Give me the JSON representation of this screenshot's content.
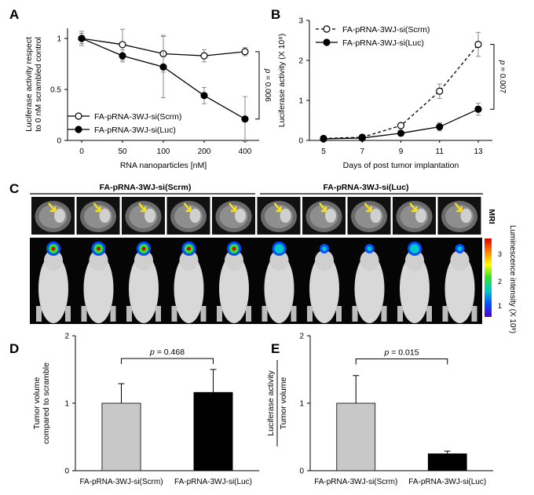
{
  "panels": {
    "A": "A",
    "B": "B",
    "C": "C",
    "D": "D",
    "E": "E"
  },
  "panel_c": {
    "group_left": "FA-pRNA-3WJ-si(Scrm)",
    "group_right": "FA-pRNA-3WJ-si(Luc)",
    "mri_label": "MRI",
    "colorbar_title": "Luminescence intensity (X 10⁸)",
    "colorbar_ticks": [
      "1",
      "2",
      "3"
    ],
    "colors": {
      "arrow": "#f6e11b",
      "colorbar": [
        "#5a00c8",
        "#0050ff",
        "#00c8c8",
        "#30e030",
        "#ffff00",
        "#ff8000",
        "#e00000"
      ]
    },
    "icons": [
      "mri-brain-slice",
      "mouse-silhouette",
      "yellow-arrow"
    ]
  },
  "chart_data": [
    {
      "id": "A",
      "type": "line",
      "title": "",
      "xlabel": "RNA nanoparticles [nM]",
      "ylabel_lines": [
        "Luciferase activity respect",
        "to 0 nM scrambled control"
      ],
      "categories": [
        "0",
        "50",
        "100",
        "200",
        "400"
      ],
      "ylim": [
        0,
        1.1
      ],
      "yticks": [
        "0",
        "0.5",
        "1"
      ],
      "series": [
        {
          "name": "FA-pRNA-3WJ-si(Scrm)",
          "marker": "open-circle",
          "values": [
            1.0,
            0.94,
            0.85,
            0.83,
            0.87
          ],
          "errors": [
            0.07,
            0.15,
            0.18,
            0.06,
            0.04
          ]
        },
        {
          "name": "FA-pRNA-3WJ-si(Luc)",
          "marker": "filled-circle",
          "values": [
            1.0,
            0.83,
            0.72,
            0.44,
            0.21
          ],
          "errors": [
            0.05,
            0.06,
            0.3,
            0.08,
            0.22
          ]
        }
      ],
      "annotation": "p = 0.006",
      "legend": "bottom-left",
      "grid": false
    },
    {
      "id": "B",
      "type": "line",
      "title": "",
      "xlabel": "Days of post tumor implantation",
      "ylabel": "Luciferase activity (X 10⁸)",
      "categories": [
        "5",
        "7",
        "9",
        "11",
        "13"
      ],
      "ylim": [
        0,
        3
      ],
      "yticks": [
        "0",
        "1",
        "2",
        "3"
      ],
      "series": [
        {
          "name": "FA-pRNA-3WJ-si(Scrm)",
          "marker": "open-circle",
          "dash": true,
          "values": [
            0.05,
            0.08,
            0.37,
            1.23,
            2.4
          ],
          "errors": [
            0.02,
            0.03,
            0.05,
            0.18,
            0.3
          ]
        },
        {
          "name": "FA-pRNA-3WJ-si(Luc)",
          "marker": "filled-circle",
          "values": [
            0.04,
            0.06,
            0.18,
            0.34,
            0.78
          ],
          "errors": [
            0.02,
            0.02,
            0.03,
            0.1,
            0.15
          ]
        }
      ],
      "annotation": "p = 0.007",
      "legend": "top-left",
      "grid": false
    },
    {
      "id": "D",
      "type": "bar",
      "title": "",
      "xlabel": "",
      "ylabel_lines": [
        "Tumor volume",
        "compared to scramble"
      ],
      "categories": [
        "FA-pRNA-3WJ-si(Scrm)",
        "FA-pRNA-3WJ-si(Luc)"
      ],
      "values": [
        1.0,
        1.16
      ],
      "errors": [
        0.29,
        0.34
      ],
      "bar_colors": [
        "#c8c8c8",
        "#000000"
      ],
      "ylim": [
        0,
        2
      ],
      "yticks": [
        "0",
        "1",
        "2"
      ],
      "annotation": "p = 0.468"
    },
    {
      "id": "E",
      "type": "bar",
      "title": "",
      "xlabel": "",
      "ylabel_top": "Luciferase activity",
      "ylabel_bottom": "Tumor volume",
      "categories": [
        "FA-pRNA-3WJ-si(Scrm)",
        "FA-pRNA-3WJ-si(Luc)"
      ],
      "values": [
        1.0,
        0.25
      ],
      "errors": [
        0.41,
        0.04
      ],
      "bar_colors": [
        "#c8c8c8",
        "#000000"
      ],
      "ylim": [
        0,
        2
      ],
      "yticks": [
        "0",
        "1",
        "2"
      ],
      "annotation": "p = 0.015"
    }
  ]
}
